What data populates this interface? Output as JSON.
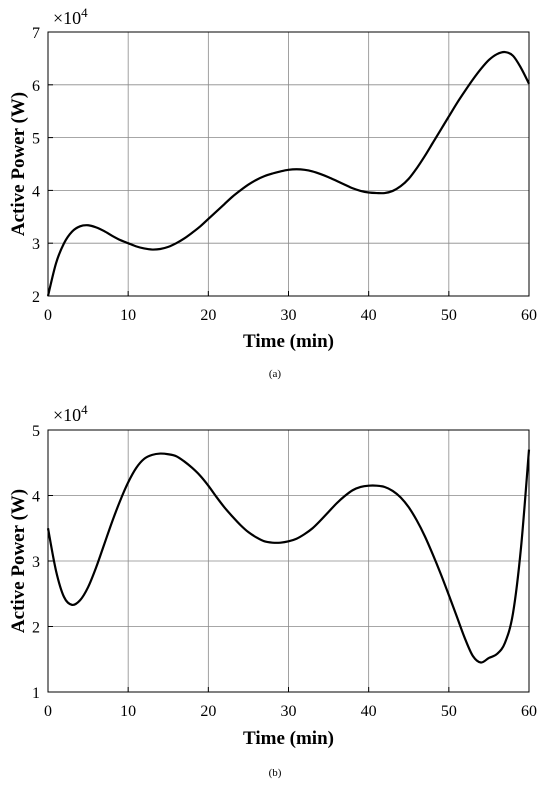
{
  "chart_data": [
    {
      "type": "line",
      "xlabel": "Time (min)",
      "ylabel": "Active Power (W)",
      "multiplier": "×10",
      "multiplier_exp": "4",
      "caption": "(a)",
      "xlim": [
        0,
        60
      ],
      "ylim": [
        2,
        7
      ],
      "xticks": [
        0,
        10,
        20,
        30,
        40,
        50,
        60
      ],
      "yticks": [
        2,
        3,
        4,
        5,
        6,
        7
      ],
      "grid": true,
      "x": [
        0,
        1,
        2,
        3,
        4,
        5,
        6,
        7,
        8,
        9,
        10,
        11,
        12,
        13,
        14,
        15,
        16,
        17,
        18,
        19,
        20,
        21,
        22,
        23,
        24,
        25,
        26,
        27,
        28,
        29,
        30,
        31,
        32,
        33,
        34,
        35,
        36,
        37,
        38,
        39,
        40,
        41,
        42,
        43,
        44,
        45,
        46,
        47,
        48,
        49,
        50,
        51,
        52,
        53,
        54,
        55,
        56,
        57,
        58,
        59,
        60
      ],
      "y": [
        2.0,
        2.62,
        3.0,
        3.22,
        3.32,
        3.34,
        3.3,
        3.23,
        3.14,
        3.06,
        3.0,
        2.94,
        2.9,
        2.88,
        2.89,
        2.93,
        3.0,
        3.09,
        3.2,
        3.32,
        3.46,
        3.6,
        3.74,
        3.88,
        4.0,
        4.11,
        4.2,
        4.27,
        4.32,
        4.36,
        4.39,
        4.4,
        4.39,
        4.36,
        4.31,
        4.25,
        4.18,
        4.11,
        4.04,
        3.99,
        3.96,
        3.95,
        3.95,
        3.99,
        4.08,
        4.22,
        4.42,
        4.65,
        4.9,
        5.15,
        5.4,
        5.65,
        5.88,
        6.1,
        6.3,
        6.47,
        6.58,
        6.62,
        6.55,
        6.32,
        6.02
      ]
    },
    {
      "type": "line",
      "xlabel": "Time (min)",
      "ylabel": "Active Power (W)",
      "multiplier": "×10",
      "multiplier_exp": "4",
      "caption": "(b)",
      "xlim": [
        0,
        60
      ],
      "ylim": [
        1,
        5
      ],
      "xticks": [
        0,
        10,
        20,
        30,
        40,
        50,
        60
      ],
      "yticks": [
        1,
        2,
        3,
        4,
        5
      ],
      "grid": true,
      "x": [
        0,
        1,
        2,
        3,
        4,
        5,
        6,
        7,
        8,
        9,
        10,
        11,
        12,
        13,
        14,
        15,
        16,
        17,
        18,
        19,
        20,
        21,
        22,
        23,
        24,
        25,
        26,
        27,
        28,
        29,
        30,
        31,
        32,
        33,
        34,
        35,
        36,
        37,
        38,
        39,
        40,
        41,
        42,
        43,
        44,
        45,
        46,
        47,
        48,
        49,
        50,
        51,
        52,
        53,
        54,
        55,
        56,
        57,
        58,
        59,
        60
      ],
      "y": [
        3.5,
        2.85,
        2.45,
        2.33,
        2.4,
        2.6,
        2.9,
        3.25,
        3.6,
        3.92,
        4.2,
        4.42,
        4.56,
        4.62,
        4.64,
        4.63,
        4.6,
        4.52,
        4.42,
        4.3,
        4.15,
        3.98,
        3.82,
        3.68,
        3.55,
        3.44,
        3.36,
        3.3,
        3.28,
        3.28,
        3.3,
        3.34,
        3.41,
        3.5,
        3.62,
        3.75,
        3.88,
        3.99,
        4.08,
        4.13,
        4.15,
        4.15,
        4.13,
        4.07,
        3.97,
        3.82,
        3.62,
        3.38,
        3.1,
        2.8,
        2.48,
        2.15,
        1.82,
        1.55,
        1.45,
        1.52,
        1.58,
        1.75,
        2.2,
        3.2,
        4.7
      ]
    }
  ]
}
